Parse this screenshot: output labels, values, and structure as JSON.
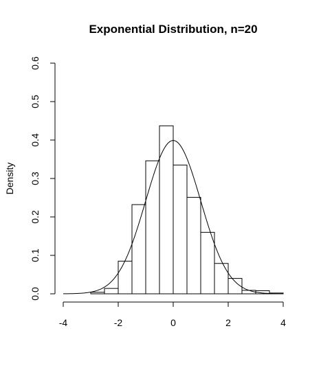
{
  "chart_data": {
    "type": "bar",
    "subtype": "histogram-with-density-curve",
    "title": "Exponential Distribution, n=20",
    "xlabel": "",
    "ylabel": "Density",
    "xlim": [
      -4,
      4
    ],
    "ylim": [
      0,
      0.6
    ],
    "x_ticks": [
      "-4",
      "-2",
      "0",
      "2",
      "4"
    ],
    "x_tick_values": [
      -4,
      -2,
      0,
      2,
      4
    ],
    "y_ticks": [
      "0.0",
      "0.1",
      "0.2",
      "0.3",
      "0.4",
      "0.5",
      "0.6"
    ],
    "y_tick_values": [
      0,
      0.1,
      0.2,
      0.3,
      0.4,
      0.5,
      0.6
    ],
    "bins": [
      {
        "x0": -4.0,
        "x1": -3.5,
        "density": 0.0
      },
      {
        "x0": -3.5,
        "x1": -3.0,
        "density": 0.0
      },
      {
        "x0": -3.0,
        "x1": -2.5,
        "density": 0.004
      },
      {
        "x0": -2.5,
        "x1": -2.0,
        "density": 0.014
      },
      {
        "x0": -2.0,
        "x1": -1.5,
        "density": 0.085
      },
      {
        "x0": -1.5,
        "x1": -1.0,
        "density": 0.232
      },
      {
        "x0": -1.0,
        "x1": -0.5,
        "density": 0.346
      },
      {
        "x0": -0.5,
        "x1": 0.0,
        "density": 0.437
      },
      {
        "x0": 0.0,
        "x1": 0.5,
        "density": 0.335
      },
      {
        "x0": 0.5,
        "x1": 1.0,
        "density": 0.251
      },
      {
        "x0": 1.0,
        "x1": 1.5,
        "density": 0.16
      },
      {
        "x0": 1.5,
        "x1": 2.0,
        "density": 0.079
      },
      {
        "x0": 2.0,
        "x1": 2.5,
        "density": 0.04
      },
      {
        "x0": 2.5,
        "x1": 3.0,
        "density": 0.009
      },
      {
        "x0": 3.0,
        "x1": 3.5,
        "density": 0.008
      },
      {
        "x0": 3.5,
        "x1": 4.0,
        "density": 0.002
      }
    ],
    "curve": {
      "description": "standard normal density",
      "mean": 0,
      "sd": 1,
      "x_range": [
        -4,
        4
      ]
    },
    "grid": false
  }
}
